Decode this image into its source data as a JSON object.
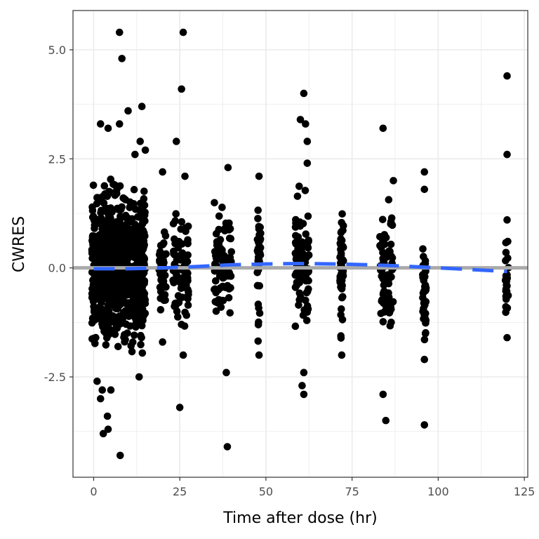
{
  "chart_data": {
    "type": "scatter",
    "xlabel": "Time after dose (hr)",
    "ylabel": "CWRES",
    "xlim": [
      -6,
      126
    ],
    "ylim": [
      -4.8,
      5.9
    ],
    "x_ticks": [
      0,
      25,
      50,
      75,
      100,
      125
    ],
    "x_tick_labels": [
      "0",
      "25",
      "50",
      "75",
      "100",
      "125"
    ],
    "y_ticks": [
      -2.5,
      0.0,
      2.5,
      5.0
    ],
    "y_tick_labels": [
      "-2.5",
      "0.0",
      "2.5",
      "5.0"
    ],
    "grid": true,
    "reference_line": {
      "y": 0,
      "color": "#aaaaaa"
    },
    "colors": {
      "points": "#000000",
      "smooth": "#3366ff",
      "grid": "#ebebeb",
      "panel_border": "#333333"
    },
    "dense_clusters": [
      {
        "x_range": [
          -0.5,
          15
        ],
        "y_range": [
          -2.4,
          2.4
        ],
        "count": 900
      },
      {
        "x_range": [
          19,
          21
        ],
        "y_range": [
          -1.8,
          1.6
        ],
        "count": 40
      },
      {
        "x_range": [
          23,
          27.5
        ],
        "y_range": [
          -2.0,
          2.0
        ],
        "count": 90
      },
      {
        "x_range": [
          35,
          40
        ],
        "y_range": [
          -1.7,
          2.0
        ],
        "count": 90
      },
      {
        "x_range": [
          47.5,
          48.5
        ],
        "y_range": [
          -2.0,
          2.0
        ],
        "count": 45
      },
      {
        "x_range": [
          58.5,
          62.5
        ],
        "y_range": [
          -1.8,
          2.0
        ],
        "count": 90
      },
      {
        "x_range": [
          71.5,
          72.5
        ],
        "y_range": [
          -2.0,
          1.9
        ],
        "count": 50
      },
      {
        "x_range": [
          83,
          87
        ],
        "y_range": [
          -1.8,
          2.0
        ],
        "count": 80
      },
      {
        "x_range": [
          95.5,
          96.5
        ],
        "y_range": [
          -2.3,
          1.1
        ],
        "count": 40
      },
      {
        "x_range": [
          119.5,
          120.5
        ],
        "y_range": [
          -1.6,
          1.1
        ],
        "count": 25
      }
    ],
    "outliers": [
      {
        "x": 7.5,
        "y": 5.4
      },
      {
        "x": 8.2,
        "y": 4.8
      },
      {
        "x": 26,
        "y": 5.4
      },
      {
        "x": 25.5,
        "y": 4.1
      },
      {
        "x": 120,
        "y": 4.4
      },
      {
        "x": 61,
        "y": 4.0
      },
      {
        "x": 10,
        "y": 3.6
      },
      {
        "x": 14,
        "y": 3.7
      },
      {
        "x": 60,
        "y": 3.4
      },
      {
        "x": 61.5,
        "y": 3.3
      },
      {
        "x": 84,
        "y": 3.2
      },
      {
        "x": 24,
        "y": 2.9
      },
      {
        "x": 62,
        "y": 2.9
      },
      {
        "x": 2,
        "y": 3.3
      },
      {
        "x": 4.2,
        "y": 3.2
      },
      {
        "x": 7.5,
        "y": 3.3
      },
      {
        "x": 13.5,
        "y": 2.9
      },
      {
        "x": 15,
        "y": 2.7
      },
      {
        "x": 12,
        "y": 2.6
      },
      {
        "x": 120,
        "y": 2.6
      },
      {
        "x": 39,
        "y": 2.3
      },
      {
        "x": 62,
        "y": 2.4
      },
      {
        "x": 96,
        "y": 2.2
      },
      {
        "x": 20,
        "y": 2.2
      },
      {
        "x": 26.5,
        "y": 2.1
      },
      {
        "x": 48,
        "y": 2.1
      },
      {
        "x": 87,
        "y": 2.0
      },
      {
        "x": 120,
        "y": 1.1
      },
      {
        "x": 96,
        "y": 1.8
      },
      {
        "x": 1,
        "y": -2.6
      },
      {
        "x": 2.5,
        "y": -2.8
      },
      {
        "x": 5,
        "y": -2.8
      },
      {
        "x": 2,
        "y": -3.0
      },
      {
        "x": 4,
        "y": -3.4
      },
      {
        "x": 4.2,
        "y": -3.7
      },
      {
        "x": 2.8,
        "y": -3.8
      },
      {
        "x": 7.7,
        "y": -4.3
      },
      {
        "x": 13.2,
        "y": -2.5
      },
      {
        "x": 25,
        "y": -3.2
      },
      {
        "x": 38.5,
        "y": -2.4
      },
      {
        "x": 38.8,
        "y": -4.1
      },
      {
        "x": 61,
        "y": -2.4
      },
      {
        "x": 60.5,
        "y": -2.7
      },
      {
        "x": 61,
        "y": -2.9
      },
      {
        "x": 84,
        "y": -2.9
      },
      {
        "x": 84.8,
        "y": -3.5
      },
      {
        "x": 96,
        "y": -3.6
      },
      {
        "x": 96,
        "y": -2.1
      },
      {
        "x": 48,
        "y": -2.0
      },
      {
        "x": 72,
        "y": -2.0
      },
      {
        "x": 120,
        "y": -1.6
      },
      {
        "x": 26,
        "y": -2.0
      },
      {
        "x": 20,
        "y": -1.7
      }
    ],
    "smooth_line": {
      "x": [
        0,
        10,
        20,
        30,
        40,
        50,
        60,
        70,
        80,
        90,
        100,
        110,
        120
      ],
      "y": [
        -0.02,
        -0.02,
        0.0,
        0.03,
        0.07,
        0.09,
        0.1,
        0.09,
        0.07,
        0.04,
        0.0,
        -0.04,
        -0.08
      ]
    }
  }
}
